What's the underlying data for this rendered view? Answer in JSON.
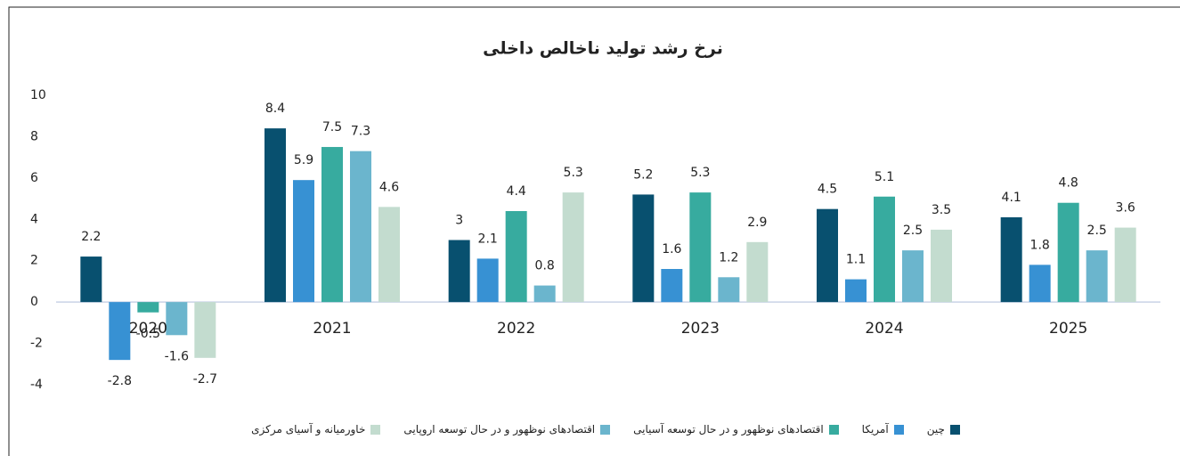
{
  "chart_data": {
    "type": "bar",
    "title": "نرخ رشد تولید ناخالص داخلی",
    "categories": [
      "2020",
      "2021",
      "2022",
      "2023",
      "2024",
      "2025"
    ],
    "series": [
      {
        "name": "چین",
        "color": "#08506f",
        "values": [
          2.2,
          8.4,
          3,
          5.2,
          4.5,
          4.1
        ]
      },
      {
        "name": "آمریکا",
        "color": "#3791d3",
        "values": [
          -2.8,
          5.9,
          2.1,
          1.6,
          1.1,
          1.8
        ]
      },
      {
        "name": "اقتصادهای نوظهور و در حال توسعه آسیایی",
        "color": "#37ab9f",
        "values": [
          -0.5,
          7.5,
          4.4,
          5.3,
          5.1,
          4.8
        ]
      },
      {
        "name": "اقتصادهای نوظهور و در حال توسعه اروپایی",
        "color": "#6bb5cd",
        "values": [
          -1.6,
          7.3,
          0.8,
          1.2,
          2.5,
          2.5
        ]
      },
      {
        "name": "خاورمیانه و آسیای مرکزی",
        "color": "#c3dccf",
        "values": [
          -2.7,
          4.6,
          5.3,
          2.9,
          3.5,
          3.6
        ]
      }
    ],
    "ylim": [
      -4,
      10
    ],
    "yticks": [
      -4,
      -2,
      0,
      2,
      4,
      6,
      8,
      10
    ],
    "legend": "bottom"
  }
}
